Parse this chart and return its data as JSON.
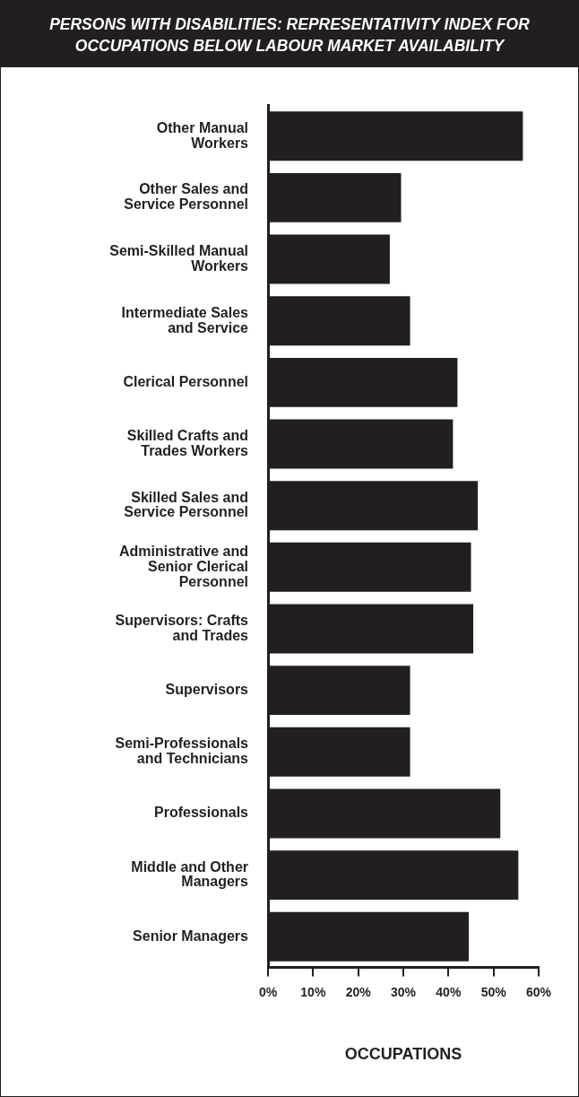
{
  "chart_data": {
    "type": "bar",
    "orientation": "horizontal",
    "title": "PERSONS WITH DISABILITIES: REPRESENTATIVITY INDEX FOR OCCUPATIONS BELOW LABOUR MARKET AVAILABILITY",
    "xlabel": "OCCUPATIONS",
    "categories": [
      "Other Manual Workers",
      "Other Sales and Service Personnel",
      "Semi-Skilled Manual Workers",
      "Intermediate Sales and Service",
      "Clerical Personnel",
      "Skilled Crafts and Trades Workers",
      "Skilled Sales and Service Personnel",
      "Administrative and Senior Clerical Personnel",
      "Supervisors: Crafts and Trades",
      "Supervisors",
      "Semi-Professionals and Technicians",
      "Professionals",
      "Middle and Other Managers",
      "Senior Managers"
    ],
    "values": [
      56.5,
      29.5,
      27,
      31.5,
      42,
      41,
      46.5,
      45,
      45.5,
      31.5,
      31.5,
      51.5,
      55.5,
      44.5
    ],
    "color": "#231f20",
    "xlim": [
      0,
      60
    ],
    "xticks": [
      {
        "value": 0,
        "label": "0%"
      },
      {
        "value": 10,
        "label": "10%"
      },
      {
        "value": 20,
        "label": "20%"
      },
      {
        "value": 30,
        "label": "30%"
      },
      {
        "value": 40,
        "label": "40%"
      },
      {
        "value": 50,
        "label": "50%"
      },
      {
        "value": 60,
        "label": "60%"
      }
    ],
    "grid": false,
    "legend": false
  }
}
